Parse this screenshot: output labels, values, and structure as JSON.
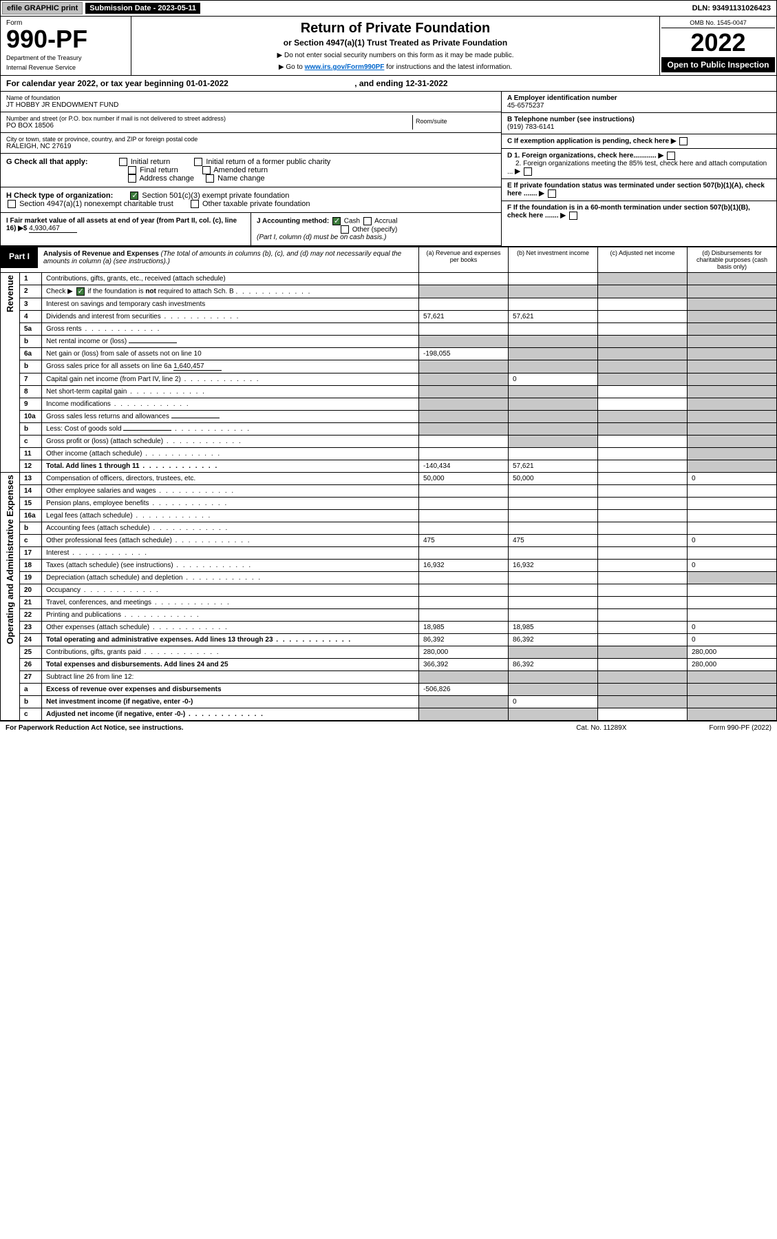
{
  "top": {
    "efile": "efile GRAPHIC print",
    "submission": "Submission Date - 2023-05-11",
    "dln": "DLN: 93491131026423"
  },
  "header": {
    "form_label": "Form",
    "form_no": "990-PF",
    "dept": "Department of the Treasury",
    "irs": "Internal Revenue Service",
    "title": "Return of Private Foundation",
    "subtitle": "or Section 4947(a)(1) Trust Treated as Private Foundation",
    "instr1": "▶ Do not enter social security numbers on this form as it may be made public.",
    "instr2_pre": "▶ Go to ",
    "instr2_link": "www.irs.gov/Form990PF",
    "instr2_post": " for instructions and the latest information.",
    "omb": "OMB No. 1545-0047",
    "year": "2022",
    "open": "Open to Public Inspection"
  },
  "cal": {
    "text_a": "For calendar year 2022, or tax year beginning ",
    "begin": "01-01-2022",
    "text_b": ", and ending ",
    "end": "12-31-2022"
  },
  "id": {
    "name_label": "Name of foundation",
    "name": "JT HOBBY JR ENDOWMENT FUND",
    "addr_label": "Number and street (or P.O. box number if mail is not delivered to street address)",
    "addr": "PO BOX 18506",
    "room_label": "Room/suite",
    "city_label": "City or town, state or province, country, and ZIP or foreign postal code",
    "city": "RALEIGH, NC  27619",
    "a_label": "A Employer identification number",
    "a_val": "45-6575237",
    "b_label": "B Telephone number (see instructions)",
    "b_val": "(919) 783-6141",
    "c_label": "C If exemption application is pending, check here",
    "d1": "D 1. Foreign organizations, check here............",
    "d2": "2. Foreign organizations meeting the 85% test, check here and attach computation ...",
    "e": "E  If private foundation status was terminated under section 507(b)(1)(A), check here .......",
    "f": "F  If the foundation is in a 60-month termination under section 507(b)(1)(B), check here ......."
  },
  "g": {
    "label": "G Check all that apply:",
    "opts": [
      "Initial return",
      "Initial return of a former public charity",
      "Final return",
      "Amended return",
      "Address change",
      "Name change"
    ]
  },
  "h": {
    "label": "H Check type of organization:",
    "opt1": "Section 501(c)(3) exempt private foundation",
    "opt2": "Section 4947(a)(1) nonexempt charitable trust",
    "opt3": "Other taxable private foundation"
  },
  "i": {
    "label": "I Fair market value of all assets at end of year (from Part II, col. (c), line 16)",
    "val": "4,930,467"
  },
  "j": {
    "label": "J Accounting method:",
    "cash": "Cash",
    "accrual": "Accrual",
    "other": "Other (specify)",
    "note": "(Part I, column (d) must be on cash basis.)"
  },
  "part1": {
    "tag": "Part I",
    "title": "Analysis of Revenue and Expenses",
    "note": "(The total of amounts in columns (b), (c), and (d) may not necessarily equal the amounts in column (a) (see instructions).)",
    "col_a": "(a)   Revenue and expenses per books",
    "col_b": "(b)   Net investment income",
    "col_c": "(c)   Adjusted net income",
    "col_d": "(d)   Disbursements for charitable purposes (cash basis only)"
  },
  "sides": {
    "rev": "Revenue",
    "exp": "Operating and Administrative Expenses"
  },
  "rows": [
    {
      "n": "1",
      "t": "Contributions, gifts, grants, etc., received (attach schedule)",
      "a": "",
      "b": "",
      "c": "g",
      "d": "g"
    },
    {
      "n": "2",
      "t": "Check ▶ ☑ if the foundation is not required to attach Sch. B",
      "dots": true,
      "a": "g",
      "b": "g",
      "c": "g",
      "d": "g"
    },
    {
      "n": "3",
      "t": "Interest on savings and temporary cash investments",
      "a": "",
      "b": "",
      "c": "",
      "d": "g"
    },
    {
      "n": "4",
      "t": "Dividends and interest from securities",
      "dots": true,
      "a": "57,621",
      "b": "57,621",
      "c": "",
      "d": "g"
    },
    {
      "n": "5a",
      "t": "Gross rents",
      "dots": true,
      "a": "",
      "b": "",
      "c": "",
      "d": "g"
    },
    {
      "n": "b",
      "t": "Net rental income or (loss)",
      "inline": "",
      "a": "g",
      "b": "g",
      "c": "g",
      "d": "g"
    },
    {
      "n": "6a",
      "t": "Net gain or (loss) from sale of assets not on line 10",
      "a": "-198,055",
      "b": "g",
      "c": "g",
      "d": "g"
    },
    {
      "n": "b",
      "t": "Gross sales price for all assets on line 6a",
      "inline": "1,640,457",
      "a": "g",
      "b": "g",
      "c": "g",
      "d": "g"
    },
    {
      "n": "7",
      "t": "Capital gain net income (from Part IV, line 2)",
      "dots": true,
      "a": "g",
      "b": "0",
      "c": "g",
      "d": "g"
    },
    {
      "n": "8",
      "t": "Net short-term capital gain",
      "dots": true,
      "a": "g",
      "b": "g",
      "c": "",
      "d": "g"
    },
    {
      "n": "9",
      "t": "Income modifications",
      "dots": true,
      "a": "g",
      "b": "g",
      "c": "",
      "d": "g"
    },
    {
      "n": "10a",
      "t": "Gross sales less returns and allowances",
      "inline": "",
      "a": "g",
      "b": "g",
      "c": "g",
      "d": "g"
    },
    {
      "n": "b",
      "t": "Less: Cost of goods sold",
      "dots": true,
      "inline": "",
      "a": "g",
      "b": "g",
      "c": "g",
      "d": "g"
    },
    {
      "n": "c",
      "t": "Gross profit or (loss) (attach schedule)",
      "dots": true,
      "a": "",
      "b": "g",
      "c": "",
      "d": "g"
    },
    {
      "n": "11",
      "t": "Other income (attach schedule)",
      "dots": true,
      "a": "",
      "b": "",
      "c": "",
      "d": "g"
    },
    {
      "n": "12",
      "t": "Total. Add lines 1 through 11",
      "dots": true,
      "bold": true,
      "a": "-140,434",
      "b": "57,621",
      "c": "",
      "d": "g"
    },
    {
      "n": "13",
      "t": "Compensation of officers, directors, trustees, etc.",
      "a": "50,000",
      "b": "50,000",
      "c": "",
      "d": "0"
    },
    {
      "n": "14",
      "t": "Other employee salaries and wages",
      "dots": true,
      "a": "",
      "b": "",
      "c": "",
      "d": ""
    },
    {
      "n": "15",
      "t": "Pension plans, employee benefits",
      "dots": true,
      "a": "",
      "b": "",
      "c": "",
      "d": ""
    },
    {
      "n": "16a",
      "t": "Legal fees (attach schedule)",
      "dots": true,
      "a": "",
      "b": "",
      "c": "",
      "d": ""
    },
    {
      "n": "b",
      "t": "Accounting fees (attach schedule)",
      "dots": true,
      "a": "",
      "b": "",
      "c": "",
      "d": ""
    },
    {
      "n": "c",
      "t": "Other professional fees (attach schedule)",
      "dots": true,
      "a": "475",
      "b": "475",
      "c": "",
      "d": "0"
    },
    {
      "n": "17",
      "t": "Interest",
      "dots": true,
      "a": "",
      "b": "",
      "c": "",
      "d": ""
    },
    {
      "n": "18",
      "t": "Taxes (attach schedule) (see instructions)",
      "dots": true,
      "a": "16,932",
      "b": "16,932",
      "c": "",
      "d": "0"
    },
    {
      "n": "19",
      "t": "Depreciation (attach schedule) and depletion",
      "dots": true,
      "a": "",
      "b": "",
      "c": "",
      "d": "g"
    },
    {
      "n": "20",
      "t": "Occupancy",
      "dots": true,
      "a": "",
      "b": "",
      "c": "",
      "d": ""
    },
    {
      "n": "21",
      "t": "Travel, conferences, and meetings",
      "dots": true,
      "a": "",
      "b": "",
      "c": "",
      "d": ""
    },
    {
      "n": "22",
      "t": "Printing and publications",
      "dots": true,
      "a": "",
      "b": "",
      "c": "",
      "d": ""
    },
    {
      "n": "23",
      "t": "Other expenses (attach schedule)",
      "dots": true,
      "a": "18,985",
      "b": "18,985",
      "c": "",
      "d": "0"
    },
    {
      "n": "24",
      "t": "Total operating and administrative expenses. Add lines 13 through 23",
      "dots": true,
      "bold": true,
      "a": "86,392",
      "b": "86,392",
      "c": "",
      "d": "0"
    },
    {
      "n": "25",
      "t": "Contributions, gifts, grants paid",
      "dots": true,
      "a": "280,000",
      "b": "g",
      "c": "g",
      "d": "280,000"
    },
    {
      "n": "26",
      "t": "Total expenses and disbursements. Add lines 24 and 25",
      "bold": true,
      "a": "366,392",
      "b": "86,392",
      "c": "",
      "d": "280,000"
    },
    {
      "n": "27",
      "t": "Subtract line 26 from line 12:",
      "a": "g",
      "b": "g",
      "c": "g",
      "d": "g"
    },
    {
      "n": "a",
      "t": "Excess of revenue over expenses and disbursements",
      "bold": true,
      "a": "-506,826",
      "b": "g",
      "c": "g",
      "d": "g"
    },
    {
      "n": "b",
      "t": "Net investment income (if negative, enter -0-)",
      "bold": true,
      "a": "g",
      "b": "0",
      "c": "g",
      "d": "g"
    },
    {
      "n": "c",
      "t": "Adjusted net income (if negative, enter -0-)",
      "dots": true,
      "bold": true,
      "a": "g",
      "b": "g",
      "c": "",
      "d": "g"
    }
  ],
  "footer": {
    "left": "For Paperwork Reduction Act Notice, see instructions.",
    "mid": "Cat. No. 11289X",
    "right": "Form 990-PF (2022)"
  }
}
